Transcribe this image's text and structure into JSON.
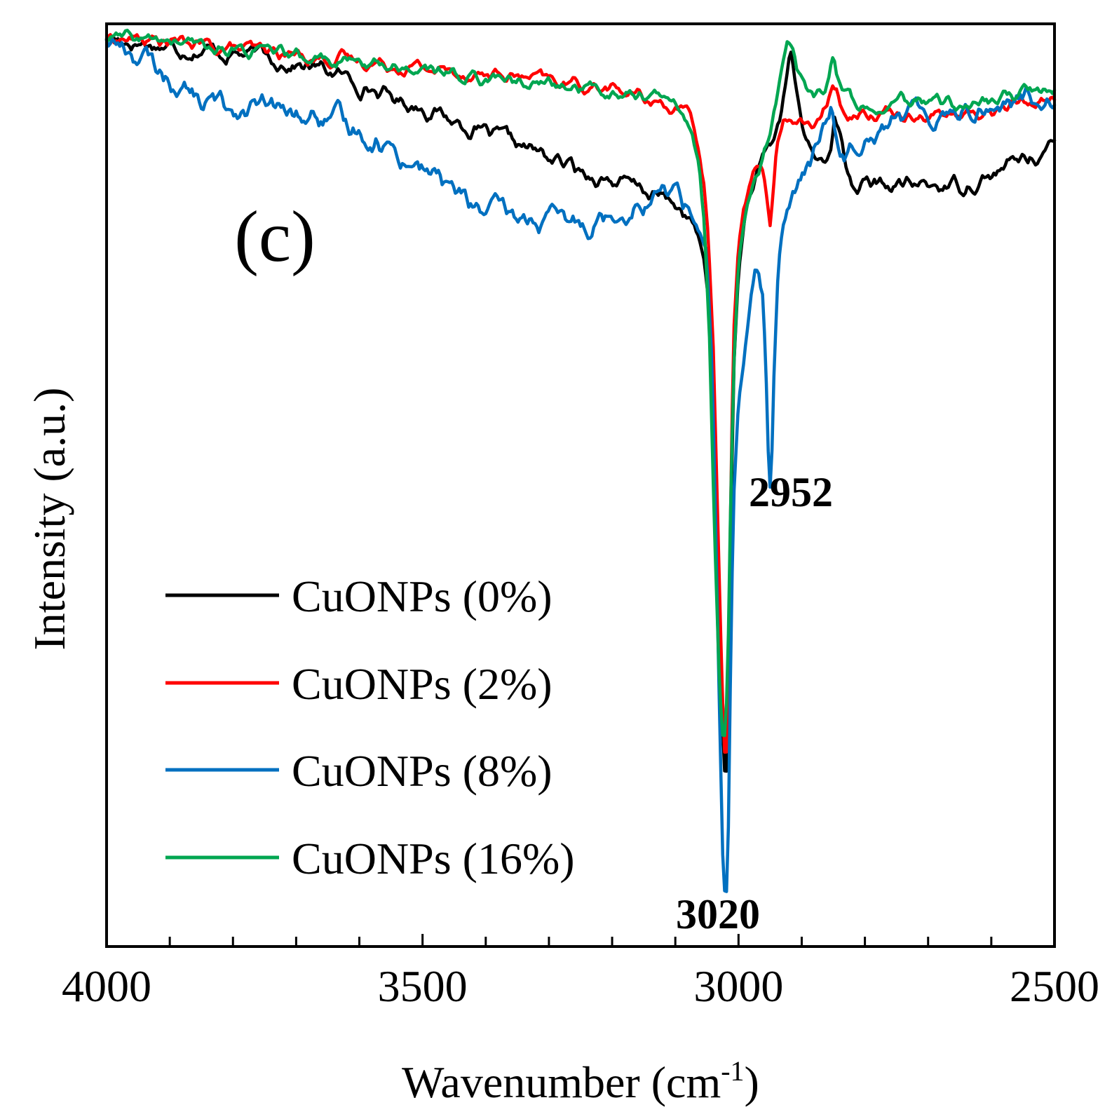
{
  "chart_data": {
    "type": "line",
    "panel_label": "(c)",
    "xlabel": "Wavenumber (cm",
    "xlabel_sup": "-1",
    "xlabel_end": ")",
    "ylabel": "Intensity (a.u.)",
    "xlim": [
      4000,
      2500
    ],
    "ylim": [
      0,
      100
    ],
    "x_major_ticks": [
      4000,
      3500,
      3000,
      2500
    ],
    "x_tick_labels": [
      "4000",
      "3500",
      "3000",
      "2500"
    ],
    "x_minor_step": 100,
    "grid": false,
    "legend_position": "lower-left",
    "annotations": [
      {
        "text": "2952",
        "x": 2952,
        "y": 49,
        "bold": true
      },
      {
        "text": "3020",
        "x": 3020,
        "y": 2,
        "bold": true
      }
    ],
    "series": [
      {
        "name": "CuONPs (0%)",
        "color": "#000000",
        "noise": 1.1,
        "points": [
          [
            4000,
            98.5
          ],
          [
            3950,
            98
          ],
          [
            3900,
            97.5
          ],
          [
            3850,
            97.2
          ],
          [
            3800,
            96.8
          ],
          [
            3750,
            96.5
          ],
          [
            3700,
            95.5
          ],
          [
            3650,
            95
          ],
          [
            3600,
            93.5
          ],
          [
            3550,
            92
          ],
          [
            3500,
            91
          ],
          [
            3450,
            89.5
          ],
          [
            3400,
            88
          ],
          [
            3350,
            87
          ],
          [
            3300,
            85.5
          ],
          [
            3250,
            84
          ],
          [
            3200,
            83
          ],
          [
            3150,
            82
          ],
          [
            3100,
            80.5
          ],
          [
            3070,
            78
          ],
          [
            3055,
            74
          ],
          [
            3045,
            69
          ],
          [
            3040,
            60
          ],
          [
            3032,
            40
          ],
          [
            3026,
            25
          ],
          [
            3022,
            19
          ],
          [
            3019,
            19
          ],
          [
            3016,
            28
          ],
          [
            3012,
            45
          ],
          [
            3008,
            62
          ],
          [
            3000,
            73
          ],
          [
            2990,
            79
          ],
          [
            2975,
            83
          ],
          [
            2960,
            85
          ],
          [
            2945,
            87
          ],
          [
            2935,
            89.5
          ],
          [
            2925,
            94
          ],
          [
            2918,
            97
          ],
          [
            2912,
            95
          ],
          [
            2905,
            91
          ],
          [
            2895,
            87.5
          ],
          [
            2880,
            85.5
          ],
          [
            2865,
            85
          ],
          [
            2855,
            87
          ],
          [
            2848,
            90
          ],
          [
            2840,
            88
          ],
          [
            2832,
            85
          ],
          [
            2820,
            82.5
          ],
          [
            2800,
            82.5
          ],
          [
            2750,
            82.5
          ],
          [
            2700,
            82.5
          ],
          [
            2650,
            82.5
          ],
          [
            2600,
            83.5
          ],
          [
            2550,
            85.5
          ],
          [
            2500,
            86.5
          ]
        ]
      },
      {
        "name": "CuONPs (2%)",
        "color": "#ff0000",
        "noise": 0.9,
        "points": [
          [
            4000,
            98.5
          ],
          [
            3950,
            98.3
          ],
          [
            3900,
            98
          ],
          [
            3850,
            97.7
          ],
          [
            3800,
            97.3
          ],
          [
            3750,
            97
          ],
          [
            3700,
            96.6
          ],
          [
            3650,
            96.3
          ],
          [
            3600,
            96
          ],
          [
            3550,
            95.6
          ],
          [
            3500,
            95.2
          ],
          [
            3450,
            94.8
          ],
          [
            3400,
            94.5
          ],
          [
            3350,
            94.2
          ],
          [
            3300,
            93.8
          ],
          [
            3250,
            93.4
          ],
          [
            3200,
            93
          ],
          [
            3150,
            92
          ],
          [
            3100,
            91
          ],
          [
            3080,
            90
          ],
          [
            3065,
            87
          ],
          [
            3055,
            83
          ],
          [
            3048,
            77
          ],
          [
            3040,
            65
          ],
          [
            3032,
            44
          ],
          [
            3026,
            28
          ],
          [
            3022,
            21
          ],
          [
            3019,
            21
          ],
          [
            3016,
            30
          ],
          [
            3012,
            50
          ],
          [
            3008,
            66
          ],
          [
            3000,
            76
          ],
          [
            2990,
            81
          ],
          [
            2975,
            84
          ],
          [
            2965,
            84.5
          ],
          [
            2958,
            83
          ],
          [
            2950,
            78
          ],
          [
            2946,
            81
          ],
          [
            2940,
            86
          ],
          [
            2930,
            89
          ],
          [
            2915,
            90
          ],
          [
            2900,
            89.5
          ],
          [
            2885,
            89
          ],
          [
            2870,
            89
          ],
          [
            2860,
            91
          ],
          [
            2852,
            94
          ],
          [
            2845,
            93
          ],
          [
            2835,
            91
          ],
          [
            2820,
            90.5
          ],
          [
            2800,
            90.5
          ],
          [
            2750,
            90.5
          ],
          [
            2700,
            90.3
          ],
          [
            2650,
            90
          ],
          [
            2600,
            90.5
          ],
          [
            2550,
            91.5
          ],
          [
            2500,
            92
          ]
        ]
      },
      {
        "name": "CuONPs (8%)",
        "color": "#0070c0",
        "noise": 1.6,
        "points": [
          [
            4000,
            98.5
          ],
          [
            3950,
            96.5
          ],
          [
            3900,
            94
          ],
          [
            3850,
            91.5
          ],
          [
            3800,
            91
          ],
          [
            3750,
            90.8
          ],
          [
            3700,
            90
          ],
          [
            3650,
            89.5
          ],
          [
            3600,
            88.5
          ],
          [
            3550,
            86.5
          ],
          [
            3500,
            84.5
          ],
          [
            3450,
            82
          ],
          [
            3400,
            79.5
          ],
          [
            3350,
            79
          ],
          [
            3300,
            78.5
          ],
          [
            3250,
            78.3
          ],
          [
            3200,
            79.5
          ],
          [
            3150,
            81
          ],
          [
            3100,
            82
          ],
          [
            3080,
            80.5
          ],
          [
            3060,
            78
          ],
          [
            3050,
            74
          ],
          [
            3042,
            63
          ],
          [
            3036,
            45
          ],
          [
            3030,
            25
          ],
          [
            3025,
            10
          ],
          [
            3022,
            6
          ],
          [
            3019,
            6
          ],
          [
            3016,
            13
          ],
          [
            3012,
            33
          ],
          [
            3008,
            48
          ],
          [
            3000,
            59
          ],
          [
            2990,
            64
          ],
          [
            2982,
            67.5
          ],
          [
            2975,
            71.5
          ],
          [
            2968,
            72.5
          ],
          [
            2962,
            71
          ],
          [
            2957,
            64
          ],
          [
            2953,
            54
          ],
          [
            2950,
            50.5
          ],
          [
            2947,
            55
          ],
          [
            2943,
            65
          ],
          [
            2937,
            74
          ],
          [
            2928,
            79
          ],
          [
            2915,
            81
          ],
          [
            2900,
            83
          ],
          [
            2885,
            85
          ],
          [
            2870,
            87.5
          ],
          [
            2860,
            90
          ],
          [
            2853,
            91
          ],
          [
            2847,
            89
          ],
          [
            2840,
            86.5
          ],
          [
            2830,
            86
          ],
          [
            2815,
            87.5
          ],
          [
            2800,
            88.5
          ],
          [
            2750,
            89.5
          ],
          [
            2700,
            90.5
          ],
          [
            2650,
            90.8
          ],
          [
            2600,
            91
          ],
          [
            2550,
            91.8
          ],
          [
            2500,
            92.5
          ]
        ]
      },
      {
        "name": "CuONPs (16%)",
        "color": "#00a651",
        "noise": 0.9,
        "points": [
          [
            4000,
            98.5
          ],
          [
            3950,
            98.3
          ],
          [
            3900,
            98
          ],
          [
            3850,
            97.6
          ],
          [
            3800,
            97.2
          ],
          [
            3750,
            96.8
          ],
          [
            3700,
            96.4
          ],
          [
            3650,
            96.1
          ],
          [
            3600,
            95.8
          ],
          [
            3550,
            95.5
          ],
          [
            3500,
            95
          ],
          [
            3450,
            94.6
          ],
          [
            3400,
            94.2
          ],
          [
            3350,
            93.8
          ],
          [
            3300,
            93.4
          ],
          [
            3250,
            93.1
          ],
          [
            3200,
            92.7
          ],
          [
            3150,
            92.3
          ],
          [
            3120,
            91.8
          ],
          [
            3100,
            91
          ],
          [
            3085,
            90
          ],
          [
            3072,
            88
          ],
          [
            3062,
            84
          ],
          [
            3054,
            78
          ],
          [
            3046,
            66
          ],
          [
            3038,
            45
          ],
          [
            3030,
            28
          ],
          [
            3025,
            23
          ],
          [
            3021,
            23
          ],
          [
            3017,
            30
          ],
          [
            3013,
            46
          ],
          [
            3008,
            62
          ],
          [
            3000,
            74
          ],
          [
            2990,
            79
          ],
          [
            2980,
            82
          ],
          [
            2970,
            84
          ],
          [
            2960,
            86
          ],
          [
            2950,
            88
          ],
          [
            2940,
            91
          ],
          [
            2930,
            95
          ],
          [
            2922,
            98.2
          ],
          [
            2915,
            98
          ],
          [
            2908,
            95.5
          ],
          [
            2895,
            93
          ],
          [
            2880,
            92
          ],
          [
            2865,
            93
          ],
          [
            2855,
            95.5
          ],
          [
            2850,
            97
          ],
          [
            2845,
            95
          ],
          [
            2835,
            92.5
          ],
          [
            2820,
            91.5
          ],
          [
            2800,
            91.5
          ],
          [
            2750,
            91.5
          ],
          [
            2700,
            91.5
          ],
          [
            2650,
            91.3
          ],
          [
            2600,
            91.5
          ],
          [
            2550,
            92.5
          ],
          [
            2500,
            93
          ]
        ]
      }
    ]
  }
}
